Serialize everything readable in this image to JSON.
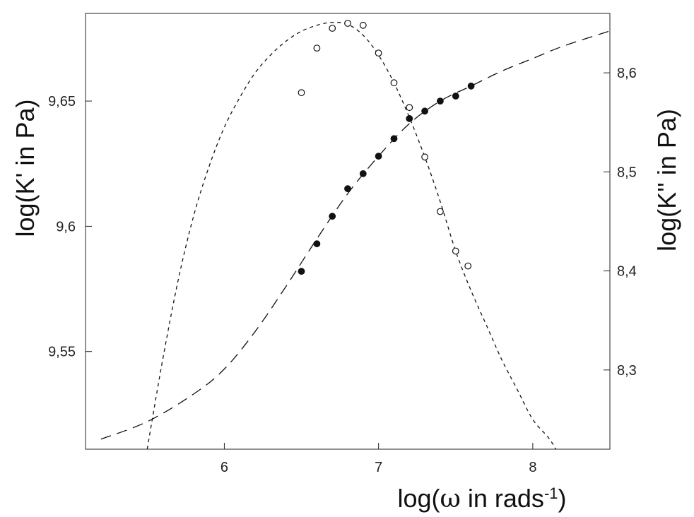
{
  "chart_data": {
    "type": "scatter",
    "title": "",
    "xlabel": {
      "main": "log(",
      "symbol": "ω",
      "rest": " in rads",
      "sup": "-1",
      "end": ")"
    },
    "ylabel_left": "log(K' in Pa)",
    "ylabel_right": "log(K'' in Pa)",
    "xlim": [
      5.1,
      8.5
    ],
    "ylim_left": [
      9.511,
      9.685
    ],
    "ylim_right": [
      8.22,
      8.66
    ],
    "x_ticks": [
      6,
      7,
      8
    ],
    "x_tick_labels": [
      "6",
      "7",
      "8"
    ],
    "y_left_ticks": [
      9.55,
      9.6,
      9.65
    ],
    "y_left_tick_labels": [
      "9,55",
      "9,6",
      "9,65"
    ],
    "y_right_ticks": [
      8.3,
      8.4,
      8.5,
      8.6
    ],
    "y_right_tick_labels": [
      "8,3",
      "8,4",
      "8,5",
      "8,6"
    ],
    "grid": false,
    "series": [
      {
        "axis": "left",
        "style": "marker-filled",
        "x": [
          6.5,
          6.6,
          6.7,
          6.8,
          6.9,
          7.0,
          7.1,
          7.2,
          7.3,
          7.4,
          7.5,
          7.6
        ],
        "y": [
          9.582,
          9.593,
          9.604,
          9.615,
          9.621,
          9.628,
          9.635,
          9.643,
          9.646,
          9.65,
          9.652,
          9.656
        ]
      },
      {
        "axis": "left",
        "style": "line-long-dash",
        "x": [
          5.2,
          5.5,
          5.8,
          6.0,
          6.2,
          6.4,
          6.6,
          6.8,
          7.0,
          7.2,
          7.4,
          7.6,
          7.8,
          8.0,
          8.2,
          8.5
        ],
        "y": [
          9.515,
          9.522,
          9.533,
          9.543,
          9.558,
          9.576,
          9.595,
          9.613,
          9.628,
          9.641,
          9.65,
          9.656,
          9.662,
          9.667,
          9.672,
          9.678
        ]
      },
      {
        "axis": "right",
        "style": "marker-open",
        "x": [
          6.5,
          6.6,
          6.7,
          6.8,
          6.9,
          7.0,
          7.1,
          7.2,
          7.3,
          7.4,
          7.5,
          7.58
        ],
        "y": [
          8.58,
          8.625,
          8.645,
          8.65,
          8.648,
          8.62,
          8.59,
          8.565,
          8.515,
          8.46,
          8.42,
          8.405
        ]
      },
      {
        "axis": "right",
        "style": "line-short-dash",
        "x": [
          5.5,
          5.6,
          5.7,
          5.8,
          5.9,
          6.0,
          6.1,
          6.2,
          6.3,
          6.4,
          6.5,
          6.6,
          6.7,
          6.8,
          6.9,
          7.0,
          7.1,
          7.2,
          7.3,
          7.4,
          7.5,
          7.6,
          7.7,
          7.8,
          7.9,
          8.0,
          8.1,
          8.15
        ],
        "y": [
          8.22,
          8.31,
          8.39,
          8.455,
          8.505,
          8.545,
          8.575,
          8.6,
          8.618,
          8.632,
          8.642,
          8.648,
          8.651,
          8.649,
          8.638,
          8.618,
          8.59,
          8.555,
          8.515,
          8.47,
          8.42,
          8.38,
          8.345,
          8.31,
          8.28,
          8.25,
          8.232,
          8.22
        ]
      }
    ]
  }
}
